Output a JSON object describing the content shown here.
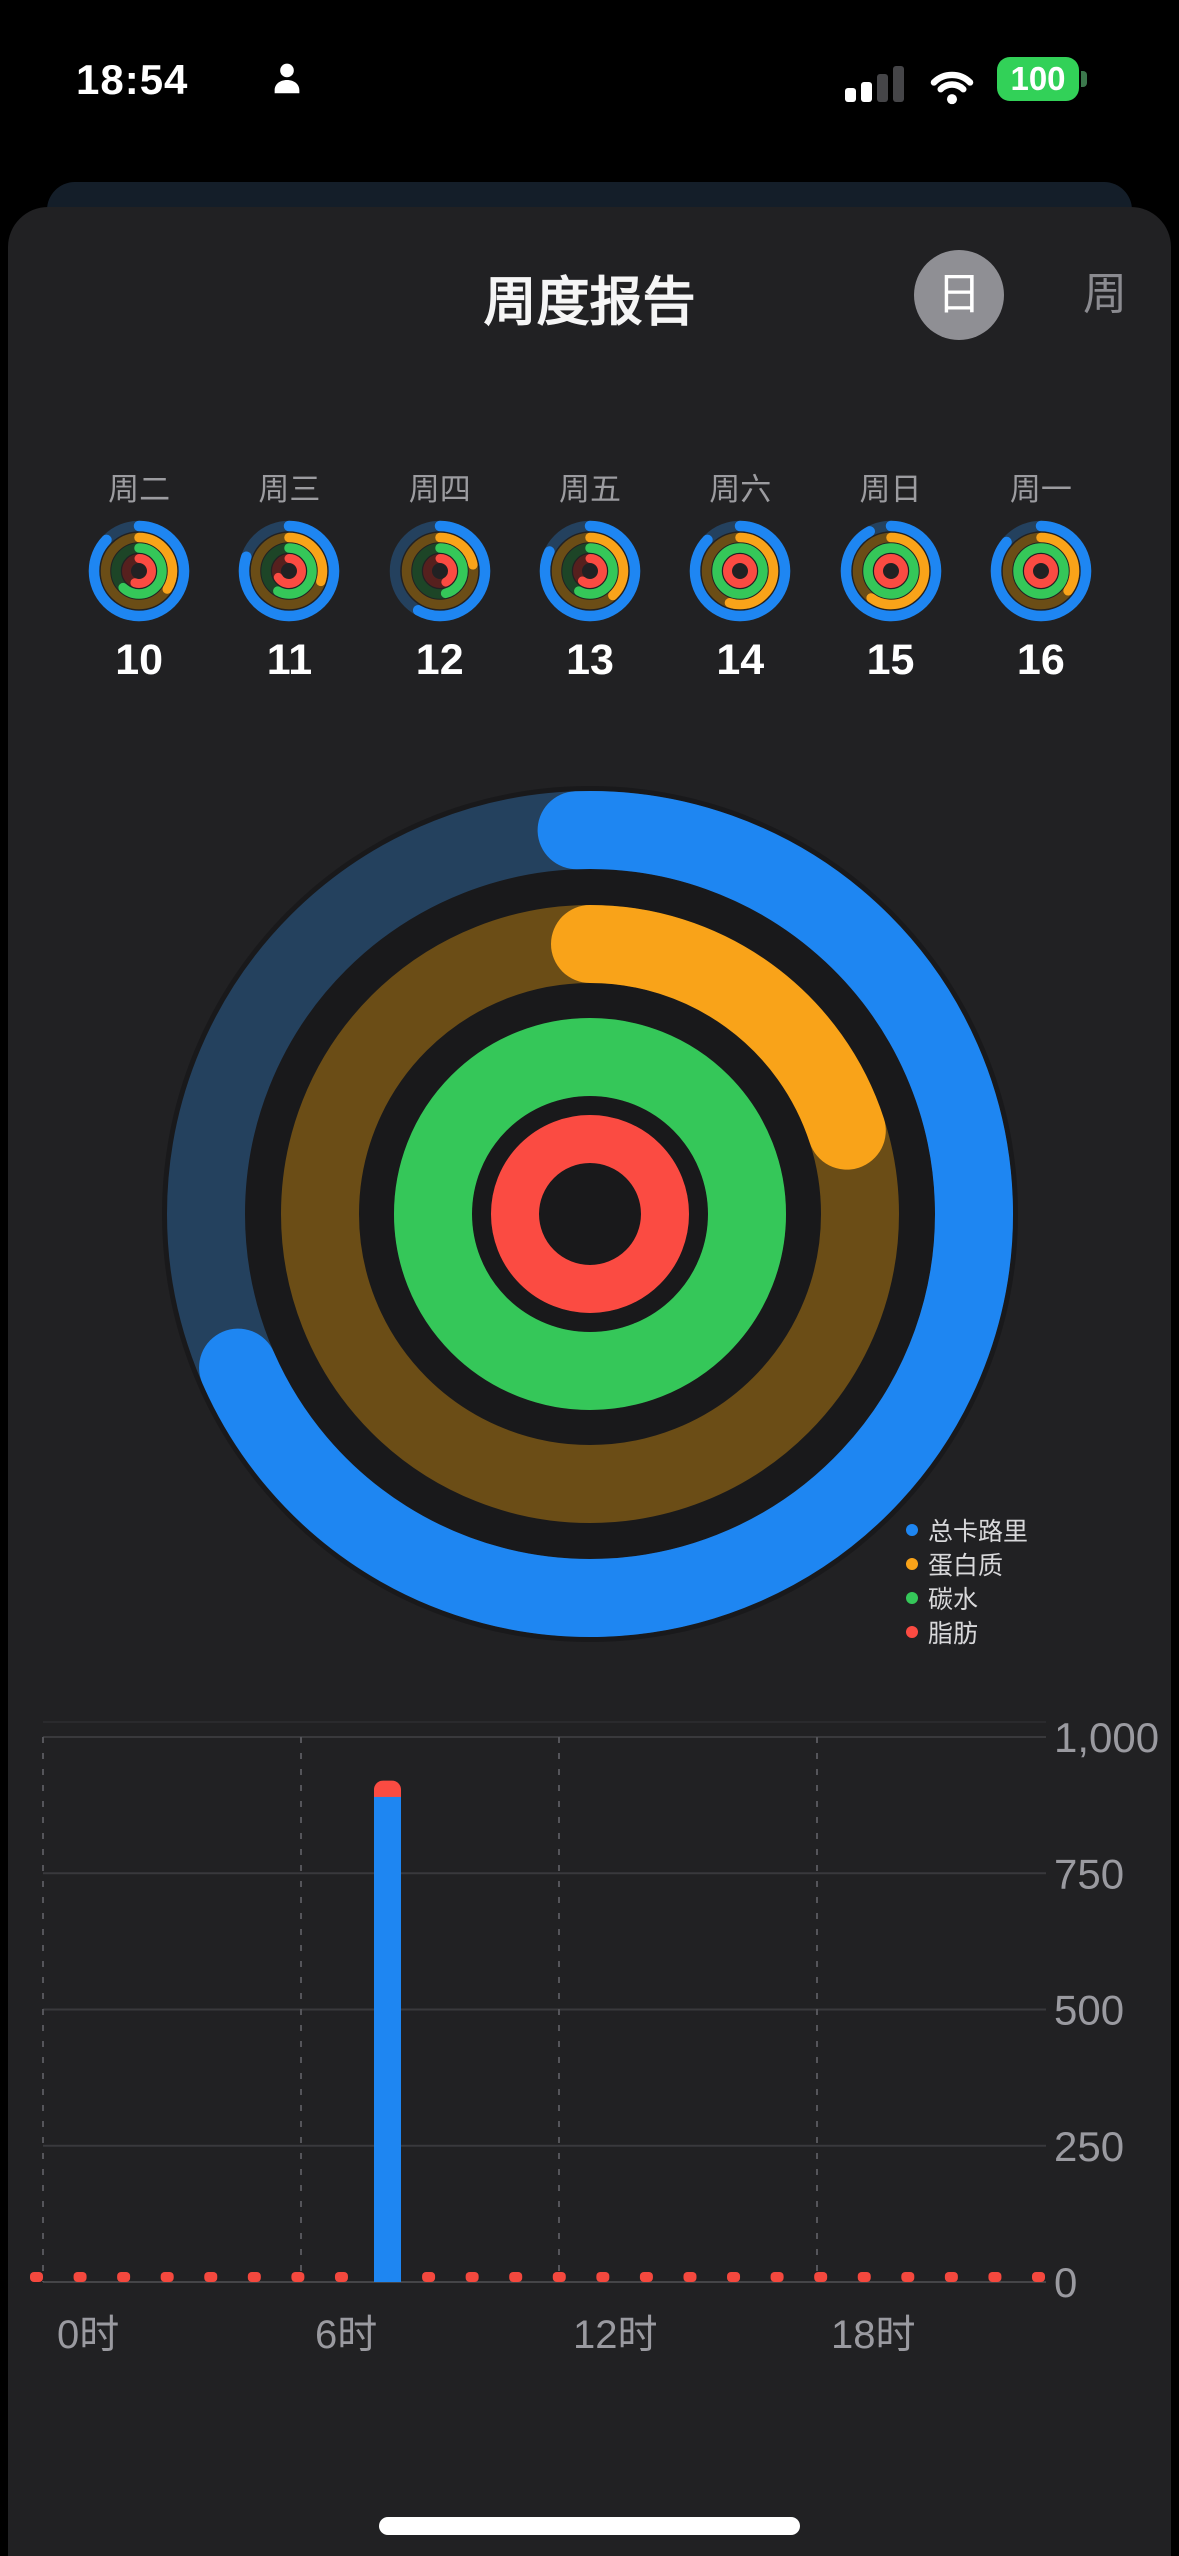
{
  "status_bar": {
    "time": "18:54",
    "battery_level": "100"
  },
  "header": {
    "title": "周度报告",
    "day_label": "日",
    "week_label": "周",
    "selected_toggle": "日"
  },
  "ring_colors": {
    "calories": "#1e86f2",
    "calories_track": "#24415e",
    "protein": "#f9a319",
    "protein_track": "#6b4d16",
    "carbs": "#35c759",
    "carbs_track": "#1d4527",
    "fat": "#fb4b42",
    "fat_track": "#56201e",
    "backing": "#19191b"
  },
  "week": {
    "days": [
      {
        "label": "周二",
        "date": "10",
        "rings": {
          "calories": 0.87,
          "protein": 0.34,
          "carbs": 0.62,
          "fat": 0.55
        }
      },
      {
        "label": "周三",
        "date": "11",
        "rings": {
          "calories": 0.8,
          "protein": 0.3,
          "carbs": 0.58,
          "fat": 0.66
        }
      },
      {
        "label": "周四",
        "date": "12",
        "rings": {
          "calories": 0.58,
          "protein": 0.22,
          "carbs": 0.46,
          "fat": 0.42
        }
      },
      {
        "label": "周五",
        "date": "13",
        "rings": {
          "calories": 0.82,
          "protein": 0.38,
          "carbs": 0.58,
          "fat": 0.6
        }
      },
      {
        "label": "周六",
        "date": "14",
        "rings": {
          "calories": 0.87,
          "protein": 0.55,
          "carbs": 1,
          "fat": 1
        }
      },
      {
        "label": "周日",
        "date": "15",
        "rings": {
          "calories": 0.92,
          "protein": 0.6,
          "carbs": 1,
          "fat": 1
        }
      },
      {
        "label": "周一",
        "date": "16",
        "rings": {
          "calories": 0.86,
          "protein": 0.35,
          "carbs": 1,
          "fat": 1
        }
      }
    ]
  },
  "macro_rings": {
    "calories": 0.69,
    "protein": 0.2,
    "carbs": 1,
    "fat": 1
  },
  "legend": {
    "items": [
      {
        "label": "总卡路里",
        "color": "#1e86f2"
      },
      {
        "label": "蛋白质",
        "color": "#f9a319"
      },
      {
        "label": "碳水",
        "color": "#35c759"
      },
      {
        "label": "脂肪",
        "color": "#fb4b42"
      }
    ]
  },
  "chart_data": {
    "type": "bar",
    "title": "",
    "x_axis": {
      "unit": "时",
      "tick_labels": [
        "0时",
        "6时",
        "12时",
        "18时"
      ],
      "tick_hours": [
        0,
        6,
        12,
        18
      ],
      "range_hours": [
        0,
        24
      ]
    },
    "y_axis": {
      "tick_labels": [
        "0",
        "250",
        "500",
        "750",
        "1,000"
      ],
      "tick_values": [
        0,
        250,
        500,
        750,
        1000
      ],
      "range": [
        0,
        1000
      ],
      "position": "right"
    },
    "grid": {
      "horizontal": "solid",
      "vertical": "dashed"
    },
    "bars": [
      {
        "hour": 8,
        "segments": [
          {
            "name": "总卡路里",
            "value": 890,
            "color": "#1e86f2"
          },
          {
            "name": "脂肪",
            "value": 30,
            "color": "#fb4b42"
          }
        ]
      }
    ],
    "baseline_dashes": {
      "name": "脂肪",
      "color": "#f4483e",
      "slot_count": 24,
      "skipped_slots": [
        8
      ]
    }
  }
}
